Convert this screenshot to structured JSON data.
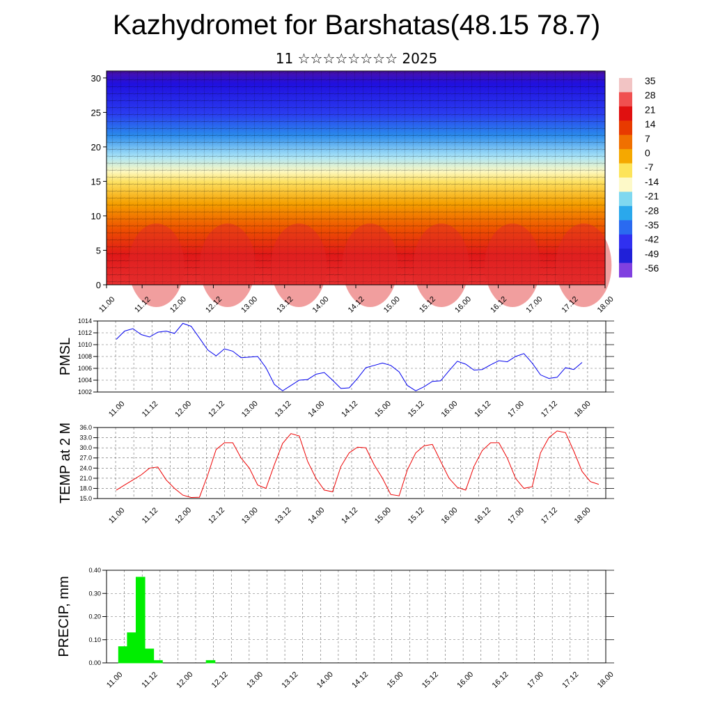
{
  "page": {
    "title": "Kazhydromet for Barshatas(48.15 78.7)",
    "subtitle": "11 ☆☆☆☆☆☆☆☆ 2025"
  },
  "x_tick_labels": [
    "11.00",
    "11.12",
    "12.00",
    "12.12",
    "13.00",
    "13.12",
    "14.00",
    "14.12",
    "15.00",
    "15.12",
    "16.00",
    "16.12",
    "17.00",
    "17.12",
    "18.00"
  ],
  "colors": {
    "pmsl": "#0000ee",
    "temp": "#ee0000",
    "precip": "#00ee00"
  },
  "chart_data": [
    {
      "type": "heatmap",
      "name": "cross-section",
      "y_ticks": [
        0,
        5,
        10,
        15,
        20,
        25,
        30
      ],
      "ylim": [
        0,
        31
      ],
      "colorbar_labels": [
        "35",
        "28",
        "21",
        "14",
        "7",
        "0",
        "-7",
        "-14",
        "-21",
        "-28",
        "-35",
        "-42",
        "-49",
        "-56"
      ],
      "colorbar_colors": [
        "#f2c4c4",
        "#f05050",
        "#e01010",
        "#e83a00",
        "#f07000",
        "#f5a800",
        "#fde45a",
        "#fdf9c8",
        "#7fd8f0",
        "#2aa8ec",
        "#2a6af0",
        "#3030f0",
        "#2020d8",
        "#8040e0"
      ]
    },
    {
      "type": "line",
      "ylabel": "PMSL",
      "ylim": [
        1002,
        1014
      ],
      "y_ticks": [
        "1002",
        "1004",
        "1006",
        "1008",
        "1010",
        "1012",
        "1014"
      ],
      "values": [
        1010.9,
        1012.3,
        1012.7,
        1011.7,
        1011.3,
        1012.1,
        1012.3,
        1011.9,
        1013.6,
        1013.1,
        1011.1,
        1009.1,
        1008.1,
        1009.3,
        1008.9,
        1007.8,
        1007.9,
        1008.0,
        1006.1,
        1003.3,
        1002.2,
        1003.1,
        1004.0,
        1004.1,
        1005.0,
        1005.3,
        1004.0,
        1002.6,
        1002.7,
        1004.3,
        1006.1,
        1006.5,
        1006.9,
        1006.5,
        1005.4,
        1003.1,
        1002.2,
        1002.9,
        1003.8,
        1003.9,
        1005.6,
        1007.2,
        1006.7,
        1005.7,
        1005.8,
        1006.6,
        1007.3,
        1007.1,
        1008.0,
        1008.5,
        1006.9,
        1004.9,
        1004.3,
        1004.5,
        1006.1,
        1005.8,
        1007.0
      ],
      "step_hours": 3
    },
    {
      "type": "line",
      "ylabel": "TEMP at 2 M",
      "ylim": [
        15,
        36
      ],
      "y_ticks": [
        "15.0",
        "18.0",
        "21.0",
        "24.0",
        "27.0",
        "30.0",
        "33.0",
        "36.0"
      ],
      "values": [
        17.5,
        19.0,
        20.5,
        22.0,
        24.0,
        24.3,
        20.5,
        18.0,
        16.0,
        15.3,
        15.4,
        22.0,
        29.5,
        31.5,
        31.5,
        27.0,
        24.0,
        19.0,
        18.0,
        25.0,
        31.3,
        34.2,
        33.5,
        26.0,
        21.0,
        17.5,
        17.0,
        24.5,
        28.5,
        30.2,
        30.0,
        25.0,
        21.0,
        16.2,
        15.8,
        23.5,
        28.5,
        30.6,
        31.0,
        26.0,
        21.0,
        18.3,
        17.5,
        24.5,
        29.2,
        31.5,
        31.5,
        27.0,
        21.0,
        18.0,
        18.5,
        28.5,
        33.0,
        35.0,
        34.5,
        29.0,
        23.0,
        20.0,
        19.2
      ],
      "step_hours": 3
    },
    {
      "type": "bar",
      "ylabel": "PRECIP, mm",
      "ylim": [
        0,
        0.4
      ],
      "y_ticks": [
        "0.00",
        "0.10",
        "0.20",
        "0.30",
        "0.40"
      ],
      "values": [
        0.07,
        0.13,
        0.37,
        0.06,
        0.01,
        0,
        0,
        0,
        0,
        0,
        0.01
      ],
      "step_hours": 3
    }
  ]
}
